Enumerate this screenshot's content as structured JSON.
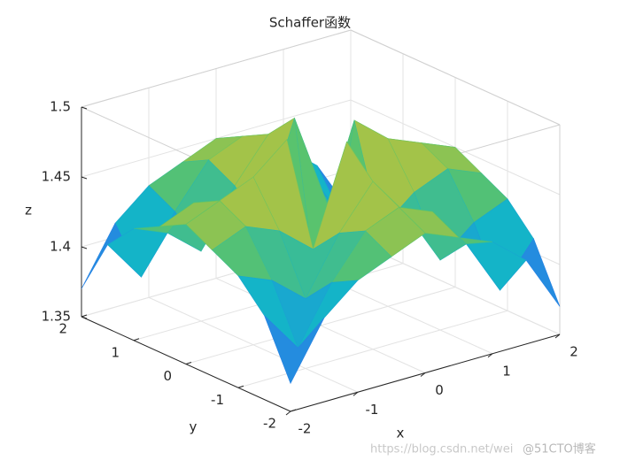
{
  "chart_data": {
    "type": "surface",
    "title": "Schaffer函数",
    "x_label": "x",
    "y_label": "y",
    "z_label": "z",
    "x": [
      -2,
      -1.5,
      -1,
      -0.5,
      0,
      0.5,
      1,
      1.5,
      2
    ],
    "y": [
      -2,
      -1.5,
      -1,
      -0.5,
      0,
      0.5,
      1,
      1.5,
      2
    ],
    "z": [
      [
        1.37,
        1.41,
        1.43,
        1.44,
        1.45,
        1.44,
        1.43,
        1.41,
        1.37
      ],
      [
        1.41,
        1.38,
        1.42,
        1.45,
        1.46,
        1.45,
        1.42,
        1.38,
        1.41
      ],
      [
        1.43,
        1.42,
        1.4,
        1.44,
        1.47,
        1.44,
        1.4,
        1.42,
        1.43
      ],
      [
        1.44,
        1.45,
        1.44,
        1.42,
        1.49,
        1.42,
        1.44,
        1.45,
        1.44
      ],
      [
        1.45,
        1.46,
        1.47,
        1.49,
        1.35,
        1.49,
        1.47,
        1.46,
        1.45
      ],
      [
        1.44,
        1.45,
        1.44,
        1.42,
        1.49,
        1.42,
        1.44,
        1.45,
        1.44
      ],
      [
        1.43,
        1.42,
        1.4,
        1.44,
        1.47,
        1.44,
        1.4,
        1.42,
        1.43
      ],
      [
        1.41,
        1.38,
        1.42,
        1.45,
        1.46,
        1.45,
        1.42,
        1.38,
        1.41
      ],
      [
        1.37,
        1.41,
        1.43,
        1.44,
        1.45,
        1.44,
        1.43,
        1.41,
        1.37
      ]
    ],
    "xlim": [
      -2,
      2
    ],
    "ylim": [
      -2,
      2
    ],
    "zlim": [
      1.35,
      1.5
    ],
    "xticks": [
      -2,
      -1,
      0,
      1,
      2
    ],
    "yticks": [
      -2,
      -1,
      0,
      1,
      2
    ],
    "zticks": [
      1.35,
      1.4,
      1.45,
      1.5
    ],
    "grid": true,
    "colormap": [
      "#3e26a8",
      "#2f6ff0",
      "#14b4c8",
      "#5fc466",
      "#e7c12c",
      "#f9fb0e"
    ],
    "watermark": [
      "https://blog.csdn.net/wei",
      "@51CTO博客"
    ]
  }
}
